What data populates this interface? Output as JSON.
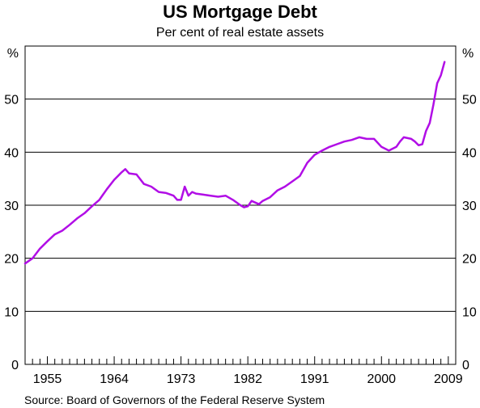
{
  "title": "US Mortgage Debt",
  "subtitle": "Per cent of real estate assets",
  "source": "Source: Board of Governors of the Federal Reserve System",
  "colors": {
    "line": "#b10ee6",
    "grid": "#000000",
    "axis": "#000000"
  },
  "chart_data": {
    "type": "line",
    "title": "US Mortgage Debt",
    "subtitle": "Per cent of real estate assets",
    "ylabel_left": "%",
    "ylabel_right": "%",
    "ylim": [
      0,
      60
    ],
    "xlim": [
      1952,
      2010
    ],
    "xticks": [
      "1955",
      "1964",
      "1973",
      "1982",
      "1991",
      "2000",
      "2009"
    ],
    "xtick_values": [
      1955,
      1964,
      1973,
      1982,
      1991,
      2000,
      2009
    ],
    "yticks": [
      0,
      10,
      20,
      30,
      40,
      50
    ],
    "grid": true,
    "series": [
      {
        "x": [
          1952.0,
          1953.0,
          1954.0,
          1955.0,
          1956.0,
          1957.0,
          1958.0,
          1959.0,
          1960.0,
          1961.0,
          1962.0,
          1963.0,
          1964.0,
          1964.5,
          1965.0,
          1965.5,
          1966.0,
          1967.0,
          1968.0,
          1969.0,
          1970.0,
          1971.0,
          1972.0,
          1972.5,
          1973.0,
          1973.5,
          1974.0,
          1974.5,
          1975.0,
          1976.0,
          1977.0,
          1978.0,
          1979.0,
          1980.0,
          1981.0,
          1981.5,
          1982.0,
          1982.5,
          1983.0,
          1983.5,
          1984.0,
          1985.0,
          1986.0,
          1987.0,
          1988.0,
          1989.0,
          1990.0,
          1991.0,
          1992.0,
          1993.0,
          1994.0,
          1995.0,
          1996.0,
          1997.0,
          1998.0,
          1999.0,
          2000.0,
          2001.0,
          2002.0,
          2002.5,
          2003.0,
          2004.0,
          2004.5,
          2005.0,
          2005.5,
          2006.0,
          2006.5,
          2007.0,
          2007.5,
          2008.0,
          2008.5
        ],
        "values": [
          19.0,
          20.0,
          21.8,
          23.2,
          24.5,
          25.2,
          26.3,
          27.5,
          28.5,
          29.8,
          31.0,
          33.0,
          34.8,
          35.5,
          36.2,
          36.8,
          36.0,
          35.8,
          34.0,
          33.5,
          32.5,
          32.3,
          31.8,
          31.0,
          31.0,
          33.5,
          31.8,
          32.5,
          32.2,
          32.0,
          31.8,
          31.6,
          31.8,
          31.0,
          30.0,
          29.6,
          29.8,
          30.8,
          30.5,
          30.2,
          30.8,
          31.5,
          32.8,
          33.5,
          34.5,
          35.5,
          38.0,
          39.5,
          40.3,
          41.0,
          41.5,
          42.0,
          42.3,
          42.8,
          42.5,
          42.5,
          41.0,
          40.3,
          41.0,
          42.0,
          42.8,
          42.5,
          42.0,
          41.3,
          41.5,
          44.0,
          45.5,
          49.0,
          53.0,
          54.5,
          57.0
        ]
      }
    ]
  }
}
